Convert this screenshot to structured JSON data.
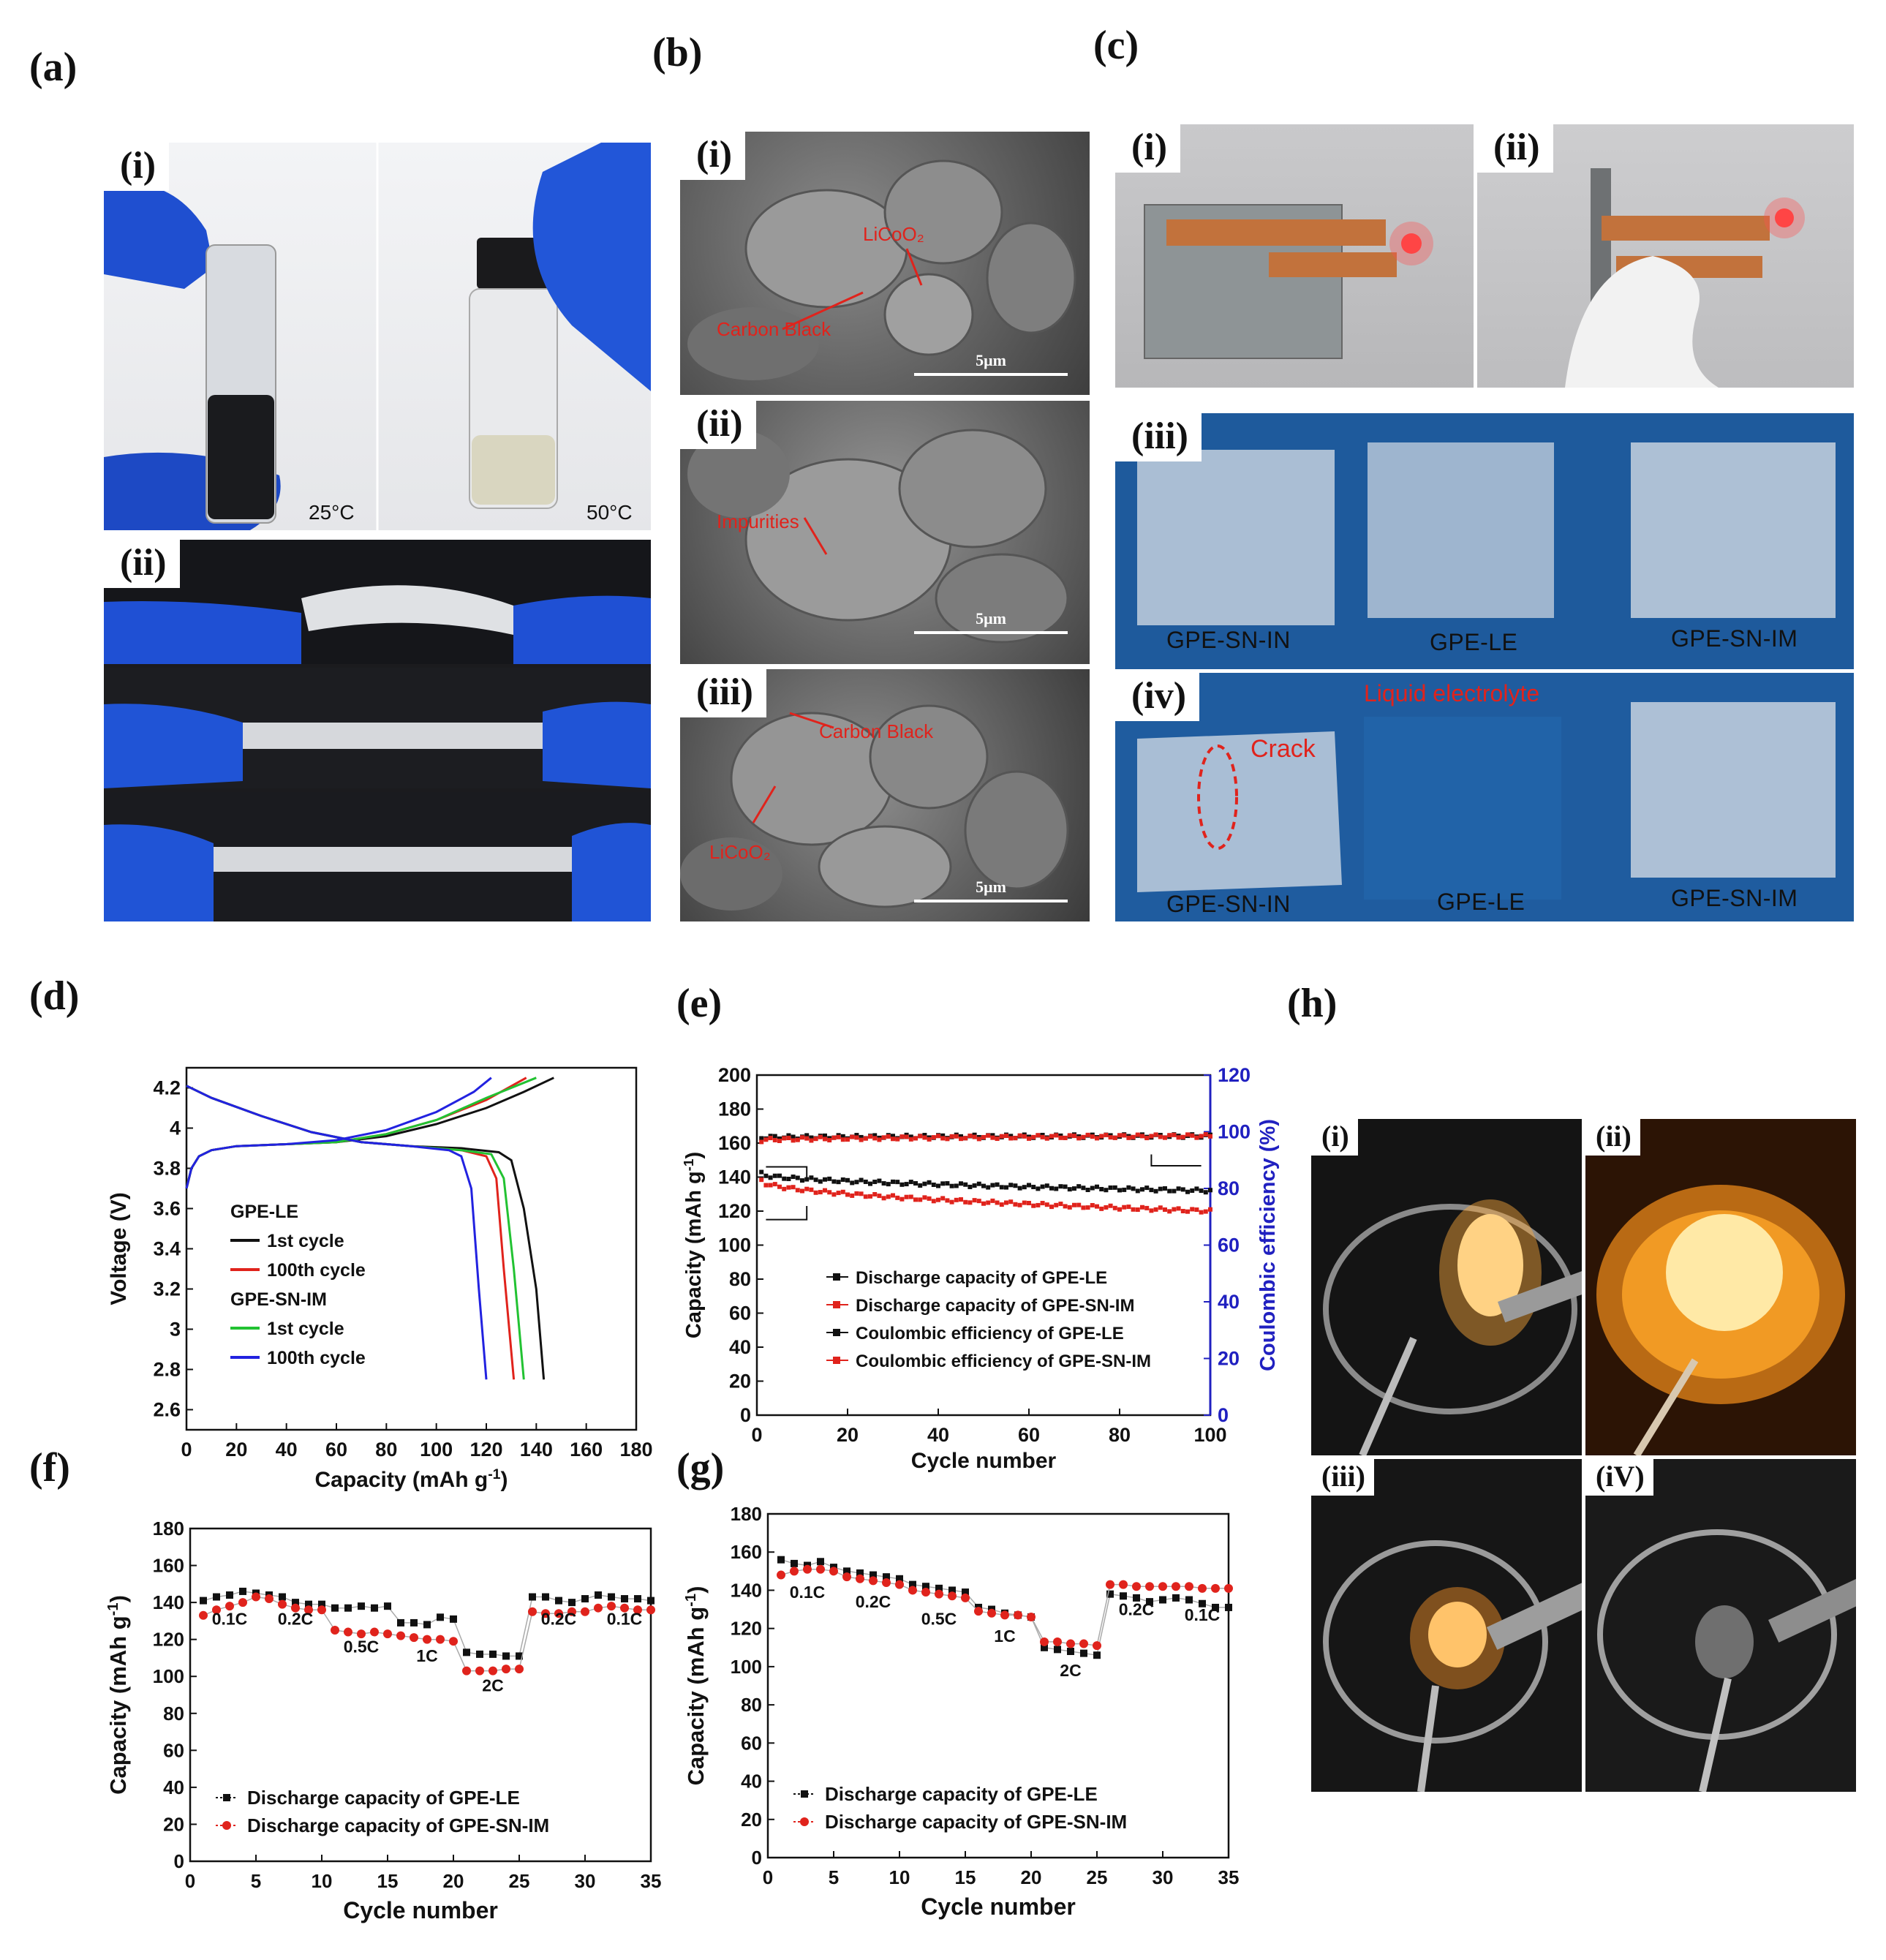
{
  "panel_a": {
    "letter": "(a)",
    "i": {
      "label": "(i)",
      "left_temp": "25°C",
      "right_temp": "50°C"
    },
    "ii": {
      "label": "(ii)"
    }
  },
  "panel_b": {
    "letter": "(b)",
    "i": {
      "label": "(i)",
      "ann1": "LiCoO₂",
      "ann2": "Carbon Black",
      "scale": "5μm"
    },
    "ii": {
      "label": "(ii)",
      "ann1": "Impurities",
      "scale": "5μm"
    },
    "iii": {
      "label": "(iii)",
      "ann1": "Carbon Black",
      "ann2": "LiCoO₂",
      "scale": "5μm"
    }
  },
  "panel_c": {
    "letter": "(c)",
    "i": {
      "label": "(i)"
    },
    "ii": {
      "label": "(ii)"
    },
    "iii": {
      "label": "(iii)",
      "films": [
        "GPE-SN-IN",
        "GPE-LE",
        "GPE-SN-IM"
      ]
    },
    "iv": {
      "label": "(iv)",
      "films": [
        "GPE-SN-IN",
        "GPE-LE",
        "GPE-SN-IM"
      ],
      "crack": "Crack",
      "liquid": "Liquid electrolyte"
    }
  },
  "panel_h": {
    "letter": "(h)",
    "labels": [
      "(i)",
      "(ii)",
      "(iii)",
      "(iV)"
    ]
  },
  "colors": {
    "black": "#111111",
    "red": "#e0231c",
    "green": "#22c232",
    "blue": "#2222e0",
    "axis_right": "#2020c0"
  },
  "chart_data": [
    {
      "id": "d",
      "letter": "(d)",
      "type": "line",
      "xlabel": "Capacity (mAh g",
      "xlabel_sup": "-1",
      "xlabel_end": ")",
      "ylabel": "Voltage (V)",
      "xlim": [
        0,
        180
      ],
      "ylim": [
        2.5,
        4.3
      ],
      "xticks": [
        0,
        20,
        40,
        60,
        80,
        100,
        120,
        140,
        160,
        180
      ],
      "yticks": [
        2.6,
        2.8,
        3.0,
        3.2,
        3.4,
        3.6,
        3.8,
        4.0,
        4.2
      ],
      "legend_groups": [
        {
          "title": "GPE-LE",
          "items": [
            {
              "name": "1st cycle",
              "color": "#111111"
            },
            {
              "name": "100th cycle",
              "color": "#e0231c"
            }
          ]
        },
        {
          "title": "GPE-SN-IM",
          "items": [
            {
              "name": "1st cycle",
              "color": "#22c232"
            },
            {
              "name": "100th cycle",
              "color": "#2222e0"
            }
          ]
        }
      ],
      "series": [
        {
          "color": "#111111",
          "charge": [
            [
              0,
              3.7
            ],
            [
              2,
              3.8
            ],
            [
              5,
              3.86
            ],
            [
              10,
              3.89
            ],
            [
              20,
              3.91
            ],
            [
              40,
              3.92
            ],
            [
              60,
              3.93
            ],
            [
              80,
              3.96
            ],
            [
              100,
              4.02
            ],
            [
              120,
              4.1
            ],
            [
              135,
              4.18
            ],
            [
              147,
              4.25
            ]
          ],
          "discharge": [
            [
              0,
              4.21
            ],
            [
              10,
              4.15
            ],
            [
              30,
              4.06
            ],
            [
              50,
              3.98
            ],
            [
              70,
              3.93
            ],
            [
              90,
              3.91
            ],
            [
              110,
              3.9
            ],
            [
              125,
              3.88
            ],
            [
              130,
              3.84
            ],
            [
              135,
              3.6
            ],
            [
              140,
              3.2
            ],
            [
              143,
              2.75
            ]
          ]
        },
        {
          "color": "#e0231c",
          "charge": [
            [
              0,
              3.7
            ],
            [
              2,
              3.8
            ],
            [
              5,
              3.86
            ],
            [
              10,
              3.89
            ],
            [
              20,
              3.91
            ],
            [
              40,
              3.92
            ],
            [
              60,
              3.93
            ],
            [
              80,
              3.97
            ],
            [
              100,
              4.04
            ],
            [
              120,
              4.14
            ],
            [
              136,
              4.25
            ]
          ],
          "discharge": [
            [
              0,
              4.21
            ],
            [
              10,
              4.15
            ],
            [
              30,
              4.06
            ],
            [
              50,
              3.98
            ],
            [
              70,
              3.93
            ],
            [
              90,
              3.91
            ],
            [
              110,
              3.89
            ],
            [
              120,
              3.86
            ],
            [
              124,
              3.75
            ],
            [
              127,
              3.3
            ],
            [
              131,
              2.75
            ]
          ]
        },
        {
          "color": "#22c232",
          "charge": [
            [
              0,
              3.7
            ],
            [
              2,
              3.8
            ],
            [
              5,
              3.86
            ],
            [
              10,
              3.89
            ],
            [
              20,
              3.91
            ],
            [
              40,
              3.92
            ],
            [
              60,
              3.93
            ],
            [
              80,
              3.97
            ],
            [
              100,
              4.04
            ],
            [
              120,
              4.15
            ],
            [
              140,
              4.25
            ]
          ],
          "discharge": [
            [
              0,
              4.21
            ],
            [
              10,
              4.15
            ],
            [
              30,
              4.06
            ],
            [
              50,
              3.98
            ],
            [
              70,
              3.93
            ],
            [
              90,
              3.91
            ],
            [
              110,
              3.89
            ],
            [
              122,
              3.87
            ],
            [
              127,
              3.75
            ],
            [
              131,
              3.3
            ],
            [
              135,
              2.75
            ]
          ]
        },
        {
          "color": "#2222e0",
          "charge": [
            [
              0,
              3.7
            ],
            [
              2,
              3.8
            ],
            [
              5,
              3.86
            ],
            [
              10,
              3.89
            ],
            [
              20,
              3.91
            ],
            [
              40,
              3.92
            ],
            [
              60,
              3.94
            ],
            [
              80,
              3.99
            ],
            [
              100,
              4.08
            ],
            [
              115,
              4.18
            ],
            [
              122,
              4.25
            ]
          ],
          "discharge": [
            [
              0,
              4.21
            ],
            [
              10,
              4.15
            ],
            [
              30,
              4.06
            ],
            [
              50,
              3.98
            ],
            [
              70,
              3.93
            ],
            [
              90,
              3.91
            ],
            [
              105,
              3.89
            ],
            [
              110,
              3.86
            ],
            [
              114,
              3.7
            ],
            [
              117,
              3.2
            ],
            [
              120,
              2.75
            ]
          ]
        }
      ]
    },
    {
      "id": "e",
      "letter": "(e)",
      "type": "scatter",
      "xlabel": "Cycle number",
      "ylabel": "Capacity (mAh g",
      "ylabel_sup": "-1",
      "ylabel_end": ")",
      "ylabel_right": "Coulombic efficiency (%)",
      "xlim": [
        0,
        100
      ],
      "ylim": [
        0,
        200
      ],
      "ylim_right": [
        0,
        120
      ],
      "xticks": [
        0,
        20,
        40,
        60,
        80,
        100
      ],
      "yticks": [
        0,
        20,
        40,
        60,
        80,
        100,
        120,
        140,
        160,
        180,
        200
      ],
      "yticks_right": [
        0,
        20,
        40,
        60,
        80,
        100,
        120
      ],
      "xtick_labels": [
        "0",
        "20",
        "40",
        "60",
        "80",
        "100"
      ],
      "series": [
        {
          "name": "Discharge capacity of GPE-LE",
          "color": "#111111",
          "axis": "left",
          "start": 142,
          "end": 132
        },
        {
          "name": "Discharge capacity of GPE-SN-IM",
          "color": "#e0231c",
          "axis": "left",
          "start": 138,
          "end": 120
        },
        {
          "name": "Coulombic efficiency of GPE-LE",
          "color": "#111111",
          "axis": "right",
          "start": 98,
          "end": 98.5
        },
        {
          "name": "Coulombic efficiency of GPE-SN-IM",
          "color": "#e0231c",
          "axis": "right",
          "start": 97,
          "end": 98.5
        }
      ]
    },
    {
      "id": "f",
      "letter": "(f)",
      "type": "scatter",
      "xlabel": "Cycle number",
      "ylabel": "Capacity (mAh g",
      "ylabel_sup": "-1",
      "ylabel_end": ")",
      "xlim": [
        0,
        35
      ],
      "ylim": [
        0,
        180
      ],
      "xticks": [
        0,
        5,
        10,
        15,
        20,
        25,
        30,
        35
      ],
      "yticks": [
        0,
        20,
        40,
        60,
        80,
        100,
        120,
        140,
        160,
        180
      ],
      "rate_labels": [
        {
          "text": "0.1C",
          "x": 3,
          "y": 128
        },
        {
          "text": "0.2C",
          "x": 8,
          "y": 128
        },
        {
          "text": "0.5C",
          "x": 13,
          "y": 113
        },
        {
          "text": "1C",
          "x": 18,
          "y": 108
        },
        {
          "text": "2C",
          "x": 23,
          "y": 92
        },
        {
          "text": "0.2C",
          "x": 28,
          "y": 128
        },
        {
          "text": "0.1C",
          "x": 33,
          "y": 128
        }
      ],
      "series": [
        {
          "name": "Discharge capacity of GPE-LE",
          "color": "#111111",
          "x": [
            1,
            2,
            3,
            4,
            5,
            6,
            7,
            8,
            9,
            10,
            11,
            12,
            13,
            14,
            15,
            16,
            17,
            18,
            19,
            20,
            21,
            22,
            23,
            24,
            25,
            26,
            27,
            28,
            29,
            30,
            31,
            32,
            33,
            34,
            35
          ],
          "y": [
            141,
            143,
            144,
            146,
            145,
            144,
            143,
            140,
            139,
            139,
            137,
            137,
            138,
            137,
            138,
            129,
            129,
            128,
            132,
            131,
            113,
            112,
            112,
            111,
            111,
            143,
            143,
            141,
            140,
            142,
            144,
            143,
            142,
            142,
            141
          ]
        },
        {
          "name": "Discharge capacity of GPE-SN-IM",
          "color": "#e0231c",
          "x": [
            1,
            2,
            3,
            4,
            5,
            6,
            7,
            8,
            9,
            10,
            11,
            12,
            13,
            14,
            15,
            16,
            17,
            18,
            19,
            20,
            21,
            22,
            23,
            24,
            25,
            26,
            27,
            28,
            29,
            30,
            31,
            32,
            33,
            34,
            35
          ],
          "y": [
            133,
            136,
            138,
            140,
            143,
            142,
            139,
            137,
            136,
            136,
            125,
            124,
            123,
            124,
            123,
            122,
            121,
            120,
            120,
            119,
            103,
            103,
            103,
            104,
            104,
            135,
            134,
            134,
            135,
            135,
            137,
            138,
            137,
            136,
            136
          ]
        }
      ]
    },
    {
      "id": "g",
      "letter": "(g)",
      "type": "scatter",
      "xlabel": "Cycle number",
      "ylabel": "Capacity (mAh g",
      "ylabel_sup": "-1",
      "ylabel_end": ")",
      "xlim": [
        0,
        35
      ],
      "ylim": [
        0,
        180
      ],
      "xticks": [
        0,
        5,
        10,
        15,
        20,
        25,
        30,
        35
      ],
      "yticks": [
        0,
        20,
        40,
        60,
        80,
        100,
        120,
        140,
        160,
        180
      ],
      "rate_labels": [
        {
          "text": "0.1C",
          "x": 3,
          "y": 136
        },
        {
          "text": "0.2C",
          "x": 8,
          "y": 131
        },
        {
          "text": "0.5C",
          "x": 13,
          "y": 122
        },
        {
          "text": "1C",
          "x": 18,
          "y": 113
        },
        {
          "text": "2C",
          "x": 23,
          "y": 95
        },
        {
          "text": "0.2C",
          "x": 28,
          "y": 127
        },
        {
          "text": "0.1C",
          "x": 33,
          "y": 124
        }
      ],
      "series": [
        {
          "name": "Discharge capacity of GPE-LE",
          "color": "#111111",
          "x": [
            1,
            2,
            3,
            4,
            5,
            6,
            7,
            8,
            9,
            10,
            11,
            12,
            13,
            14,
            15,
            16,
            17,
            18,
            19,
            20,
            21,
            22,
            23,
            24,
            25,
            26,
            27,
            28,
            29,
            30,
            31,
            32,
            33,
            34,
            35
          ],
          "y": [
            156,
            154,
            153,
            155,
            152,
            150,
            149,
            148,
            147,
            146,
            143,
            142,
            141,
            140,
            139,
            131,
            130,
            128,
            127,
            126,
            110,
            109,
            108,
            107,
            106,
            138,
            137,
            136,
            134,
            135,
            136,
            135,
            133,
            131,
            131
          ]
        },
        {
          "name": "Discharge capacity of GPE-SN-IM",
          "color": "#e0231c",
          "x": [
            1,
            2,
            3,
            4,
            5,
            6,
            7,
            8,
            9,
            10,
            11,
            12,
            13,
            14,
            15,
            16,
            17,
            18,
            19,
            20,
            21,
            22,
            23,
            24,
            25,
            26,
            27,
            28,
            29,
            30,
            31,
            32,
            33,
            34,
            35
          ],
          "y": [
            148,
            150,
            151,
            151,
            150,
            147,
            146,
            145,
            144,
            143,
            140,
            139,
            138,
            137,
            136,
            129,
            128,
            127,
            127,
            126,
            113,
            113,
            112,
            112,
            111,
            143,
            143,
            142,
            142,
            142,
            142,
            142,
            141,
            141,
            141
          ]
        }
      ]
    }
  ]
}
